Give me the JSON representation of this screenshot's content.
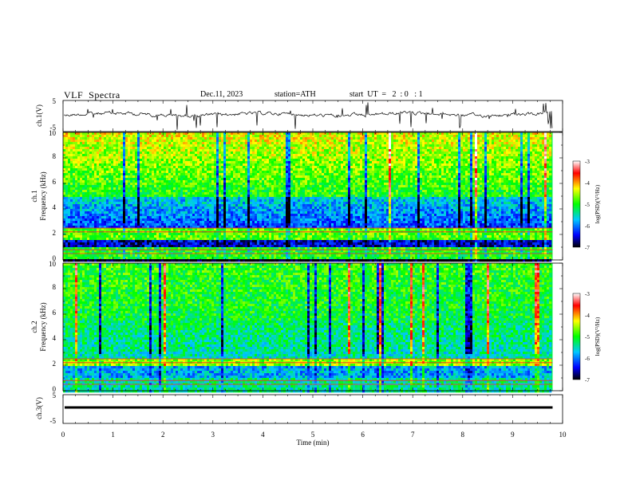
{
  "header": {
    "title": "VLF  Spectra",
    "date": "Dec.11, 2023",
    "station": "station=ATH",
    "start_ut": "start  UT  =   2  : 0   : 1"
  },
  "chart_data": [
    {
      "type": "line",
      "name": "ch1-waveform",
      "ylabel": "ch.1(V)",
      "ylim": [
        -5,
        5
      ],
      "y_ticks": [
        "5",
        "-5"
      ],
      "xlim": [
        0,
        10
      ]
    },
    {
      "type": "heatmap",
      "name": "ch1-spectrogram",
      "ylabel": "ch.1\nFrequency  (kHz)",
      "ylabel_line1": "ch.1",
      "ylabel_line2": "Frequency  (kHz)",
      "ylim": [
        0,
        10
      ],
      "y_ticks": [
        "0",
        "2",
        "4",
        "6",
        "8",
        "10"
      ],
      "xlim": [
        0,
        10
      ],
      "colorbar": {
        "label": "log(PSD)(V²/Hz)",
        "range": [
          -7,
          -3
        ],
        "ticks": [
          "-3",
          "-4",
          "-5",
          "-6",
          "-7"
        ]
      }
    },
    {
      "type": "heatmap",
      "name": "ch2-spectrogram",
      "ylabel": "ch.2\nFrequency  (kHz)",
      "ylabel_line1": "ch.2",
      "ylabel_line2": "Frequency  (kHz)",
      "ylim": [
        0,
        10
      ],
      "y_ticks": [
        "0",
        "2",
        "4",
        "6",
        "8",
        "10"
      ],
      "xlim": [
        0,
        10
      ],
      "colorbar": {
        "label": "log(PSD)(V²/Hz)",
        "range": [
          -7,
          -3
        ],
        "ticks": [
          "-3",
          "-4",
          "-5",
          "-6",
          "-7"
        ]
      }
    },
    {
      "type": "line",
      "name": "ch3-waveform",
      "ylabel": "ch.3(V)",
      "ylim": [
        -5,
        5
      ],
      "y_ticks": [
        "5",
        "-5"
      ],
      "xlim": [
        0,
        10
      ]
    }
  ],
  "x_axis": {
    "label": "Time  (min)",
    "ticks": [
      "0",
      "1",
      "2",
      "3",
      "4",
      "5",
      "6",
      "7",
      "8",
      "9",
      "10"
    ],
    "data_end": 9.8
  },
  "colors": {
    "colormap": [
      "#000000",
      "#0000ff",
      "#00c8ff",
      "#00ff00",
      "#ffff00",
      "#ff0000",
      "#ffffff"
    ]
  }
}
